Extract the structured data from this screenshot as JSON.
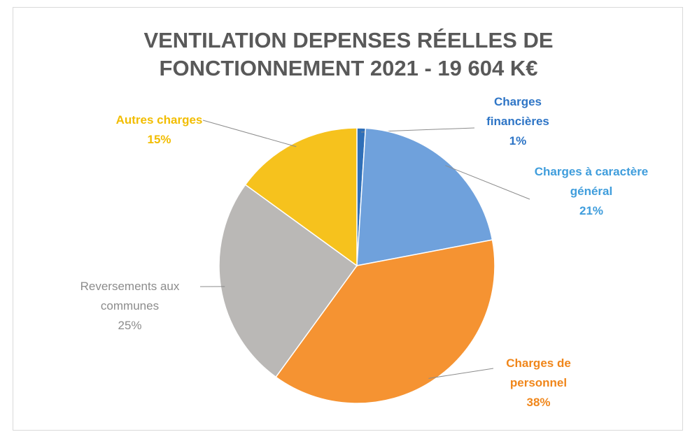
{
  "chart_data": {
    "type": "pie",
    "title": "VENTILATION DEPENSES RÉELLES DE FONCTIONNEMENT 2021 - 19 604 K€",
    "categories": [
      "Charges financières",
      "Charges à caractère général",
      "Charges de personnel",
      "Reversements aux communes",
      "Autres charges"
    ],
    "values": [
      1,
      21,
      38,
      25,
      15
    ],
    "value_labels": [
      "1%",
      "21%",
      "38%",
      "25%",
      "15%"
    ],
    "colors": [
      "#2f6fb8",
      "#6fa1dc",
      "#f59332",
      "#bab8b6",
      "#f6c21d"
    ],
    "label_colors": [
      "#2e75c6",
      "#3f9ddc",
      "#f0861a",
      "#8c8c8c",
      "#f2bd00"
    ]
  }
}
